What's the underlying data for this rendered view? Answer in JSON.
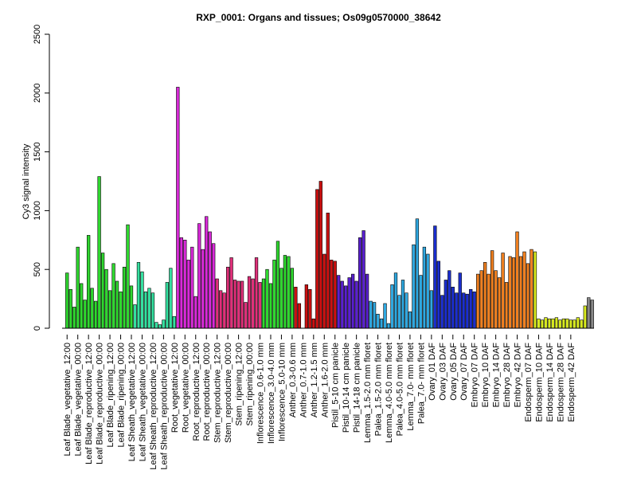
{
  "chart_data": {
    "type": "bar",
    "title": "RXP_0001: Organs and tissues; Os09g0570000_38642",
    "ylabel": "Cy3 signal intensity",
    "xlabel": "",
    "ylim": [
      0,
      2500
    ],
    "yticks": [
      0,
      500,
      1000,
      1500,
      2000,
      2500
    ],
    "grid": false,
    "values": [
      470,
      330,
      180,
      690,
      380,
      240,
      790,
      340,
      230,
      1290,
      640,
      500,
      320,
      550,
      400,
      310,
      520,
      880,
      360,
      200,
      560,
      480,
      310,
      340,
      300,
      50,
      30,
      70,
      390,
      510,
      100,
      2050,
      770,
      750,
      580,
      690,
      270,
      890,
      670,
      950,
      820,
      720,
      420,
      320,
      300,
      520,
      600,
      410,
      400,
      400,
      220,
      440,
      420,
      600,
      390,
      420,
      500,
      380,
      580,
      740,
      510,
      620,
      610,
      510,
      350,
      210,
      0,
      370,
      330,
      80,
      1180,
      1250,
      630,
      980,
      580,
      570,
      450,
      400,
      360,
      430,
      460,
      400,
      770,
      830,
      460,
      230,
      220,
      120,
      80,
      210,
      40,
      370,
      470,
      280,
      410,
      300,
      140,
      710,
      930,
      450,
      690,
      630,
      320,
      870,
      570,
      280,
      410,
      490,
      350,
      300,
      470,
      300,
      290,
      330,
      310,
      460,
      490,
      560,
      460,
      660,
      490,
      430,
      640,
      390,
      610,
      600,
      820,
      610,
      650,
      550,
      670,
      650,
      80,
      70,
      90,
      80,
      80,
      90,
      70,
      80,
      80,
      70,
      70,
      90,
      70,
      190,
      260,
      240
    ],
    "colors": [
      "#2fd82f",
      "#2fd82f",
      "#2fd82f",
      "#2fd82f",
      "#2fd82f",
      "#2fd82f",
      "#2fd82f",
      "#2fd82f",
      "#2fd82f",
      "#2fd82f",
      "#2fd82f",
      "#2fd82f",
      "#2fd82f",
      "#2fd82f",
      "#2fd82f",
      "#2fd82f",
      "#2fd82f",
      "#2fd82f",
      "#2fd82f",
      "#35e0a0",
      "#35e0a0",
      "#35e0a0",
      "#35e0a0",
      "#35e0a0",
      "#35e0a0",
      "#35e0a0",
      "#35e0a0",
      "#35e0a0",
      "#35e0a0",
      "#35e0a0",
      "#35e0a0",
      "#d92ad9",
      "#d92ad9",
      "#d92ad9",
      "#d92ad9",
      "#d92ad9",
      "#d92ad9",
      "#d92ad9",
      "#d92ad9",
      "#d92ad9",
      "#d92ad9",
      "#d92ad9",
      "#e0307a",
      "#e0307a",
      "#e0307a",
      "#e0307a",
      "#e0307a",
      "#e0307a",
      "#e0307a",
      "#e0307a",
      "#e0307a",
      "#e0307a",
      "#e0307a",
      "#e0307a",
      "#e0307a",
      "#2fd82f",
      "#2fd82f",
      "#2fd82f",
      "#2fd82f",
      "#2fd82f",
      "#2fd82f",
      "#2fd82f",
      "#2fd82f",
      "#2fd82f",
      "#cc1111",
      "#cc1111",
      "#cc1111",
      "#cc1111",
      "#cc1111",
      "#cc1111",
      "#cc1111",
      "#cc1111",
      "#cc1111",
      "#cc1111",
      "#cc1111",
      "#cc1111",
      "#5a20d0",
      "#5a20d0",
      "#5a20d0",
      "#5a20d0",
      "#5a20d0",
      "#5a20d0",
      "#5a20d0",
      "#5a20d0",
      "#5a20d0",
      "#2fa8e0",
      "#2fa8e0",
      "#2fa8e0",
      "#2fa8e0",
      "#2fa8e0",
      "#2fa8e0",
      "#2fa8e0",
      "#2fa8e0",
      "#2fa8e0",
      "#2fa8e0",
      "#2fa8e0",
      "#2fa8e0",
      "#2fa8e0",
      "#2fa8e0",
      "#2fa8e0",
      "#2fa8e0",
      "#2fa8e0",
      "#2fa8e0",
      "#1c2fd0",
      "#1c2fd0",
      "#1c2fd0",
      "#1c2fd0",
      "#1c2fd0",
      "#1c2fd0",
      "#1c2fd0",
      "#1c2fd0",
      "#1c2fd0",
      "#1c2fd0",
      "#1c2fd0",
      "#1c2fd0",
      "#f08020",
      "#f08020",
      "#f08020",
      "#f08020",
      "#f08020",
      "#f08020",
      "#f08020",
      "#f08020",
      "#f08020",
      "#f08020",
      "#f08020",
      "#f08020",
      "#f08020",
      "#f08020",
      "#f08020",
      "#f08020",
      "#d8ea20",
      "#d8ea20",
      "#d8ea20",
      "#d8ea20",
      "#d8ea20",
      "#d8ea20",
      "#d8ea20",
      "#d8ea20",
      "#d8ea20",
      "#d8ea20",
      "#d8ea20",
      "#d8ea20",
      "#d8ea20",
      "#d8ea20",
      "#d8ea20"
    ],
    "tick_labels": [
      "Leaf Blade_vegetative_12:00",
      "Leaf Blade_vegetative_00:00",
      "Leaf Blade_reproductive_12:00",
      "Leaf Blade_reproductive_00:00",
      "Leaf Blade_ripening_12:00",
      "Leaf Blade_ripening_00:00",
      "Leaf Sheath_vegetative_12:00",
      "Leaf Sheath_vegetative_00:00",
      "Leaf Sheath_reproductive_12:00",
      "Leaf Sheath_reproductive_00:00",
      "Root_vegetative_12:00",
      "Root_vegetative_00:00",
      "Root_reproductive_12:00",
      "Root_reproductive_00:00",
      "Stem_reproductive_12:00",
      "Stem_reproductive_00:00",
      "Stem_ripening_12:00",
      "Stem_ripening_00:00",
      "Inflorescence_0.6-1.0 mm",
      "Inflorescence_3.0-4.0 mm",
      "Inflorescence_5.0-10 mm",
      "Anther_0.3-0.6 mm",
      "Anther_0.7-1.0 mm",
      "Anther_1.2-1.5 mm",
      "Anther_1.6-2.0 mm",
      "Pistil_5-10 cm panicle",
      "Pistil_10-14 cm panicle",
      "Pistil_14-18 cm panicle",
      "Lemma_1.5-2.0 mm floret",
      "Palea_1.5-2.0 mm floret",
      "Lemma_4.0-5.0 mm floret",
      "Palea_4.0-5.0 mm floret",
      "Lemma_7.0- mm floret",
      "Palea_7.0- mm floret",
      "Ovary_01 DAF",
      "Ovary_03 DAF",
      "Ovary_05 DAF",
      "Ovary_07 DAF",
      "Embryo_07 DAF",
      "Embryo_10 DAF",
      "Embryo_14 DAF",
      "Embryo_28 DAF",
      "Embryo_42 DAF",
      "Endosperm_07 DAF",
      "Endosperm_10 DAF",
      "Endosperm_14 DAF",
      "Endosperm_28 DAF",
      "Endosperm_42 DAF"
    ]
  }
}
